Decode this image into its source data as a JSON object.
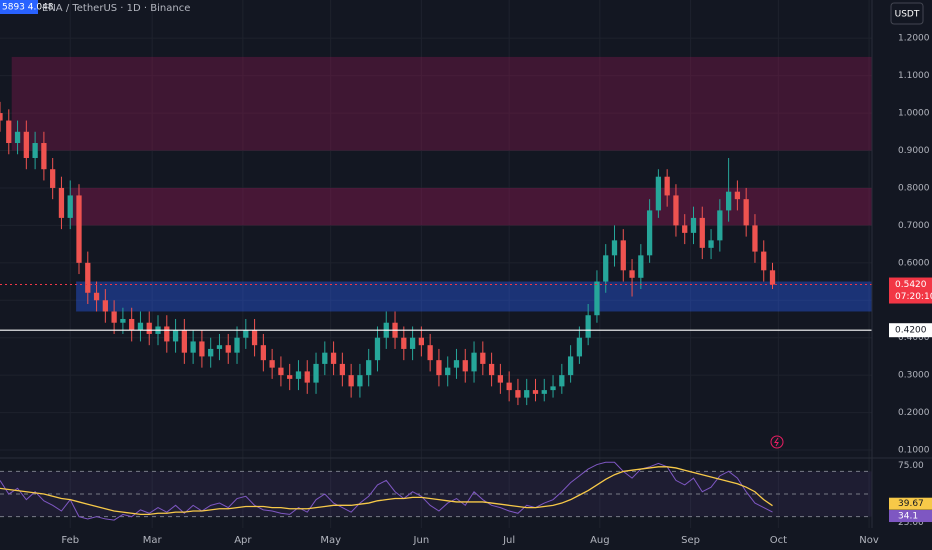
{
  "header": {
    "badge": "5893 4.048",
    "symbol": "ENA / TetherUS · 1D · Binance",
    "currency": "USDT"
  },
  "chart_data": [
    {
      "type": "candlestick",
      "x": [
        7,
        10,
        13,
        16,
        19,
        22,
        25,
        28,
        31,
        34,
        37,
        40,
        43,
        46,
        49,
        52,
        55,
        58,
        61,
        64,
        67,
        70,
        73,
        76,
        79,
        82,
        85,
        88,
        91,
        94,
        97,
        100,
        103,
        106,
        109,
        112,
        115,
        118,
        121,
        124,
        127,
        130,
        133,
        136,
        139,
        142,
        145,
        148,
        151,
        154,
        157,
        160,
        163,
        166,
        169,
        172,
        175,
        178,
        181,
        184,
        187,
        190,
        193,
        196,
        199,
        202,
        205,
        208,
        211,
        214,
        217,
        220,
        223,
        226,
        229,
        232,
        235,
        238,
        241,
        244,
        247,
        250,
        253,
        256,
        259,
        262,
        265,
        268,
        271
      ],
      "open": [
        1.0,
        0.98,
        0.92,
        0.95,
        0.88,
        0.92,
        0.85,
        0.8,
        0.72,
        0.78,
        0.6,
        0.52,
        0.5,
        0.47,
        0.44,
        0.45,
        0.42,
        0.44,
        0.41,
        0.43,
        0.39,
        0.42,
        0.36,
        0.39,
        0.35,
        0.37,
        0.38,
        0.36,
        0.4,
        0.42,
        0.38,
        0.34,
        0.32,
        0.3,
        0.29,
        0.31,
        0.28,
        0.33,
        0.36,
        0.33,
        0.3,
        0.27,
        0.3,
        0.34,
        0.4,
        0.44,
        0.4,
        0.37,
        0.4,
        0.38,
        0.34,
        0.3,
        0.32,
        0.34,
        0.31,
        0.36,
        0.33,
        0.3,
        0.28,
        0.26,
        0.24,
        0.26,
        0.25,
        0.26,
        0.27,
        0.3,
        0.35,
        0.4,
        0.46,
        0.55,
        0.62,
        0.66,
        0.58,
        0.56,
        0.62,
        0.74,
        0.83,
        0.78,
        0.7,
        0.68,
        0.72,
        0.64,
        0.66,
        0.74,
        0.79,
        0.77,
        0.7,
        0.63,
        0.58
      ],
      "high": [
        1.03,
        1.01,
        0.98,
        0.98,
        0.95,
        0.95,
        0.88,
        0.83,
        0.82,
        0.81,
        0.63,
        0.55,
        0.53,
        0.5,
        0.48,
        0.48,
        0.47,
        0.47,
        0.46,
        0.46,
        0.45,
        0.45,
        0.42,
        0.42,
        0.4,
        0.41,
        0.41,
        0.43,
        0.45,
        0.45,
        0.41,
        0.37,
        0.35,
        0.33,
        0.34,
        0.34,
        0.36,
        0.39,
        0.39,
        0.36,
        0.33,
        0.33,
        0.37,
        0.43,
        0.47,
        0.47,
        0.43,
        0.43,
        0.43,
        0.41,
        0.37,
        0.35,
        0.37,
        0.37,
        0.39,
        0.39,
        0.36,
        0.33,
        0.31,
        0.29,
        0.29,
        0.29,
        0.29,
        0.3,
        0.33,
        0.38,
        0.43,
        0.49,
        0.58,
        0.65,
        0.7,
        0.69,
        0.61,
        0.65,
        0.77,
        0.85,
        0.85,
        0.81,
        0.73,
        0.75,
        0.75,
        0.69,
        0.77,
        0.88,
        0.82,
        0.8,
        0.73,
        0.66,
        0.6
      ],
      "low": [
        0.95,
        0.89,
        0.89,
        0.85,
        0.85,
        0.82,
        0.77,
        0.69,
        0.69,
        0.57,
        0.49,
        0.47,
        0.44,
        0.41,
        0.41,
        0.39,
        0.39,
        0.38,
        0.38,
        0.36,
        0.36,
        0.33,
        0.33,
        0.32,
        0.32,
        0.34,
        0.33,
        0.33,
        0.37,
        0.35,
        0.31,
        0.29,
        0.27,
        0.26,
        0.26,
        0.25,
        0.25,
        0.3,
        0.3,
        0.27,
        0.24,
        0.24,
        0.27,
        0.31,
        0.37,
        0.37,
        0.34,
        0.34,
        0.35,
        0.31,
        0.27,
        0.27,
        0.29,
        0.28,
        0.28,
        0.3,
        0.27,
        0.25,
        0.23,
        0.22,
        0.22,
        0.23,
        0.23,
        0.24,
        0.25,
        0.28,
        0.33,
        0.38,
        0.44,
        0.52,
        0.59,
        0.55,
        0.51,
        0.53,
        0.6,
        0.72,
        0.75,
        0.67,
        0.65,
        0.65,
        0.61,
        0.61,
        0.63,
        0.71,
        0.74,
        0.67,
        0.6,
        0.55,
        0.53
      ],
      "close": [
        0.98,
        0.92,
        0.95,
        0.88,
        0.92,
        0.85,
        0.8,
        0.72,
        0.78,
        0.6,
        0.52,
        0.5,
        0.47,
        0.44,
        0.45,
        0.42,
        0.44,
        0.41,
        0.43,
        0.39,
        0.42,
        0.36,
        0.39,
        0.35,
        0.37,
        0.38,
        0.36,
        0.4,
        0.42,
        0.38,
        0.34,
        0.32,
        0.3,
        0.29,
        0.31,
        0.28,
        0.33,
        0.36,
        0.33,
        0.3,
        0.27,
        0.3,
        0.34,
        0.4,
        0.44,
        0.4,
        0.37,
        0.4,
        0.38,
        0.34,
        0.3,
        0.32,
        0.34,
        0.31,
        0.36,
        0.33,
        0.3,
        0.28,
        0.26,
        0.24,
        0.26,
        0.25,
        0.26,
        0.27,
        0.3,
        0.35,
        0.4,
        0.46,
        0.55,
        0.62,
        0.66,
        0.58,
        0.56,
        0.62,
        0.74,
        0.83,
        0.78,
        0.7,
        0.68,
        0.72,
        0.64,
        0.66,
        0.74,
        0.79,
        0.77,
        0.7,
        0.63,
        0.58,
        0.542
      ],
      "up_color": "#26a69a",
      "down_color": "#ef5350",
      "xlim": [
        7,
        305
      ],
      "xticks": [
        {
          "value": 31,
          "label": "Feb"
        },
        {
          "value": 59,
          "label": "Mar"
        },
        {
          "value": 90,
          "label": "Apr"
        },
        {
          "value": 120,
          "label": "May"
        },
        {
          "value": 151,
          "label": "Jun"
        },
        {
          "value": 181,
          "label": "Jul"
        },
        {
          "value": 212,
          "label": "Aug"
        },
        {
          "value": 243,
          "label": "Sep"
        },
        {
          "value": 273,
          "label": "Oct"
        },
        {
          "value": 304,
          "label": "Nov"
        }
      ],
      "ylim": [
        0.084,
        1.302
      ],
      "yticks": [
        {
          "value": 0.1,
          "label": "0.1000"
        },
        {
          "value": 0.2,
          "label": "0.2000"
        },
        {
          "value": 0.3,
          "label": "0.3000"
        },
        {
          "value": 0.4,
          "label": "0.4000"
        },
        {
          "value": 0.5,
          "label": "0.5000"
        },
        {
          "value": 0.6,
          "label": "0.6000"
        },
        {
          "value": 0.7,
          "label": "0.7000"
        },
        {
          "value": 0.8,
          "label": "0.8000"
        },
        {
          "value": 0.9,
          "label": "0.9000"
        },
        {
          "value": 1.0,
          "label": "1.0000"
        },
        {
          "value": 1.1,
          "label": "1.1000"
        },
        {
          "value": 1.2,
          "label": "1.2000"
        }
      ],
      "grid": true,
      "zones": [
        {
          "from": 11,
          "low": 0.9,
          "high": 1.15,
          "color": "rgba(136,24,80,0.38)"
        },
        {
          "from": 31,
          "low": 0.7,
          "high": 0.8,
          "color": "rgba(136,24,80,0.45)"
        },
        {
          "from": 33,
          "low": 0.47,
          "high": 0.55,
          "color": "rgba(41,98,255,0.38)"
        }
      ],
      "price_lines": [
        {
          "value": 0.542,
          "label": "0.5420",
          "countdown": "07:20:10",
          "color": "#f23645",
          "dashed": true
        },
        {
          "value": 0.42,
          "label": "0.4200",
          "color": "#ffffff",
          "dashed": false
        }
      ]
    },
    {
      "type": "rsi",
      "ylim": [
        20,
        80
      ],
      "yticks": [
        {
          "value": 75,
          "label": "75.00"
        },
        {
          "value": 25,
          "label": "25.00"
        }
      ],
      "bands": [
        70,
        50,
        30
      ],
      "series": [
        {
          "color": "#7e57c2",
          "values": [
            62,
            50,
            55,
            45,
            52,
            44,
            40,
            35,
            45,
            30,
            28,
            30,
            28,
            27,
            32,
            30,
            36,
            33,
            38,
            34,
            40,
            33,
            40,
            35,
            40,
            42,
            38,
            46,
            48,
            40,
            36,
            35,
            33,
            32,
            38,
            34,
            45,
            50,
            42,
            38,
            34,
            42,
            48,
            58,
            62,
            52,
            46,
            52,
            48,
            40,
            35,
            42,
            46,
            40,
            52,
            45,
            40,
            38,
            35,
            33,
            40,
            38,
            42,
            45,
            52,
            60,
            66,
            72,
            76,
            78,
            78,
            70,
            64,
            72,
            74,
            77,
            74,
            62,
            58,
            64,
            52,
            56,
            66,
            70,
            64,
            52,
            42,
            38,
            34.1
          ]
        },
        {
          "color": "#f7c948",
          "values": [
            55,
            54,
            53,
            52,
            51,
            50,
            48,
            46,
            45,
            43,
            41,
            39,
            37,
            35,
            34,
            33,
            32,
            32,
            33,
            33,
            34,
            34,
            35,
            35,
            36,
            37,
            37,
            38,
            39,
            39,
            39,
            38,
            38,
            37,
            37,
            37,
            38,
            39,
            40,
            40,
            40,
            41,
            42,
            44,
            45,
            46,
            46,
            47,
            47,
            46,
            45,
            44,
            43,
            43,
            43,
            43,
            42,
            41,
            40,
            39,
            38,
            38,
            39,
            40,
            42,
            45,
            49,
            53,
            58,
            63,
            67,
            70,
            71,
            72,
            73,
            74,
            74,
            73,
            71,
            69,
            67,
            65,
            63,
            61,
            59,
            56,
            52,
            45,
            39.67
          ]
        }
      ]
    }
  ]
}
